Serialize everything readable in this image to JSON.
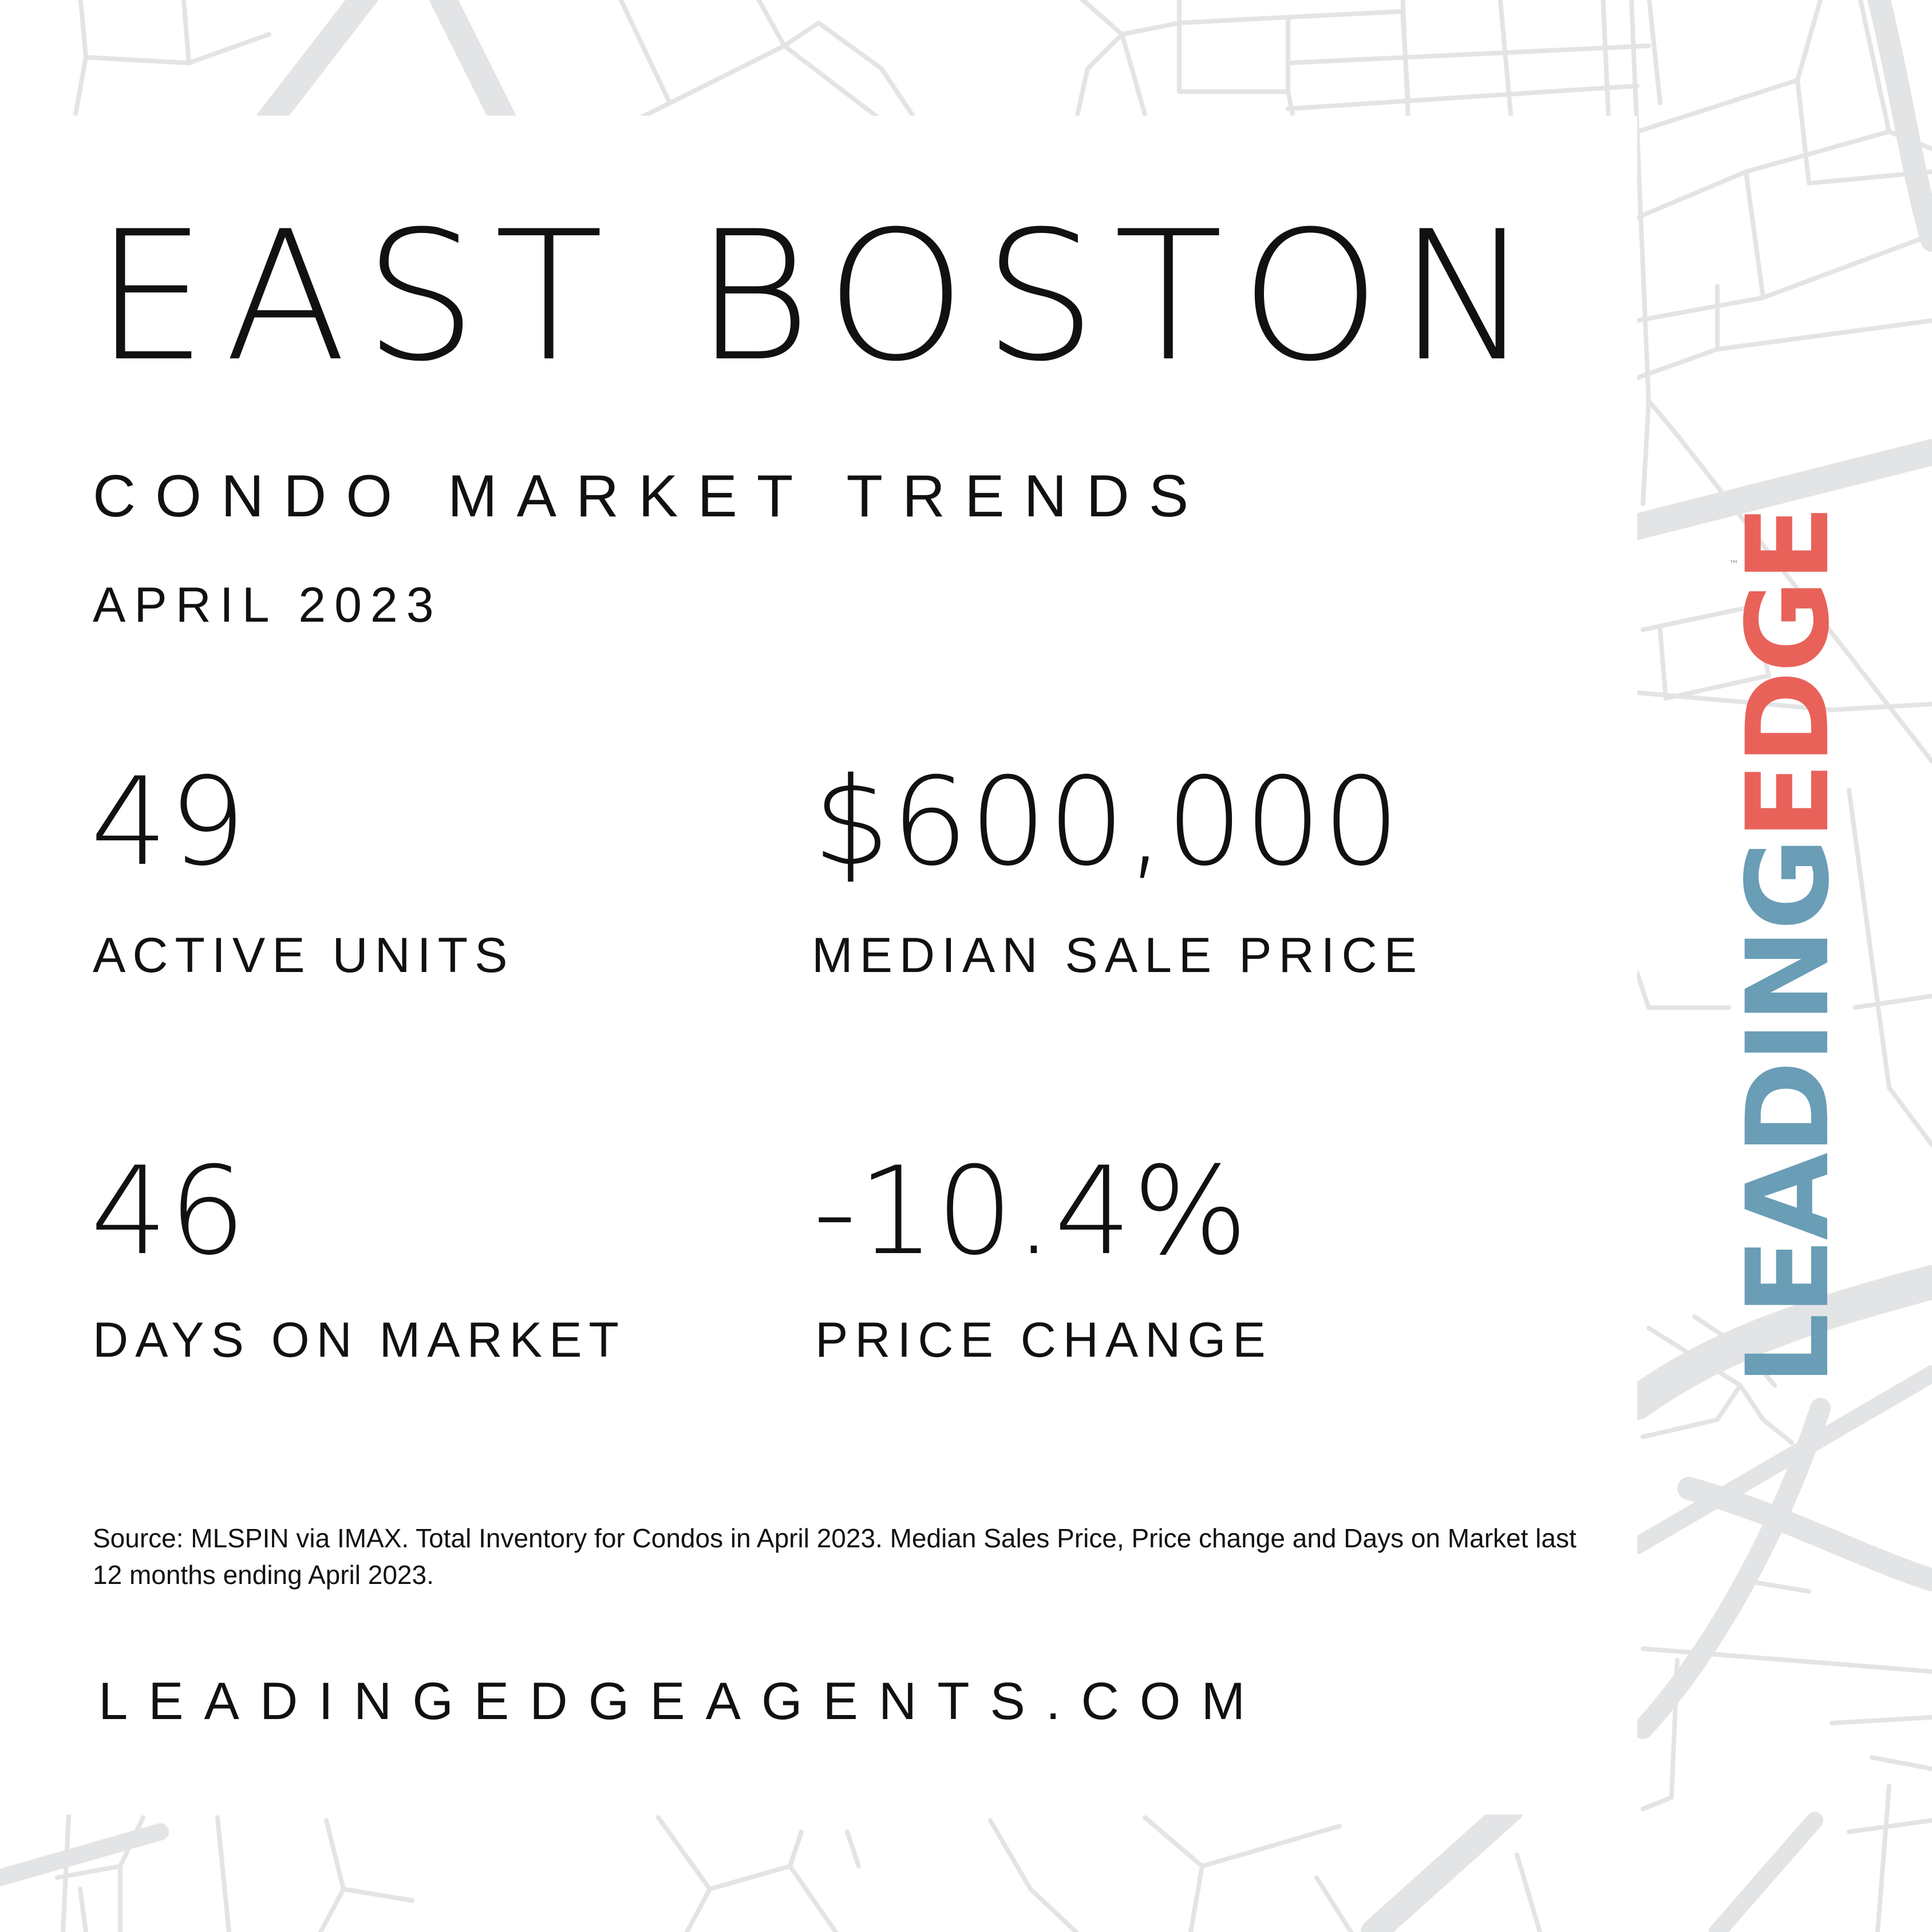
{
  "title": "EAST BOSTON",
  "subtitle": "CONDO MARKET TRENDS",
  "period": "APRIL 2023",
  "stats": [
    {
      "value": "49",
      "label": "ACTIVE UNITS"
    },
    {
      "value": "$600,000",
      "label": "MEDIAN SALE PRICE"
    },
    {
      "value": "46",
      "label": "DAYS ON MARKET"
    },
    {
      "value": "-10.4%",
      "label": "PRICE CHANGE"
    }
  ],
  "source_note": "Source: MLSPIN via IMAX. Total Inventory for Condos in April 2023. Median Sales Price, Price change and Days on Market last 12 months ending April 2023.",
  "website": "LEADINGEDGEAGENTS.COM",
  "logo": {
    "part1": "LEADING",
    "part2": "EDGE",
    "tm": "™",
    "color_part1": "#6a9db6",
    "color_part2": "#e8625a"
  },
  "colors": {
    "background": "#ffffff",
    "text": "#111111",
    "map_lines": "#e3e4e6"
  }
}
